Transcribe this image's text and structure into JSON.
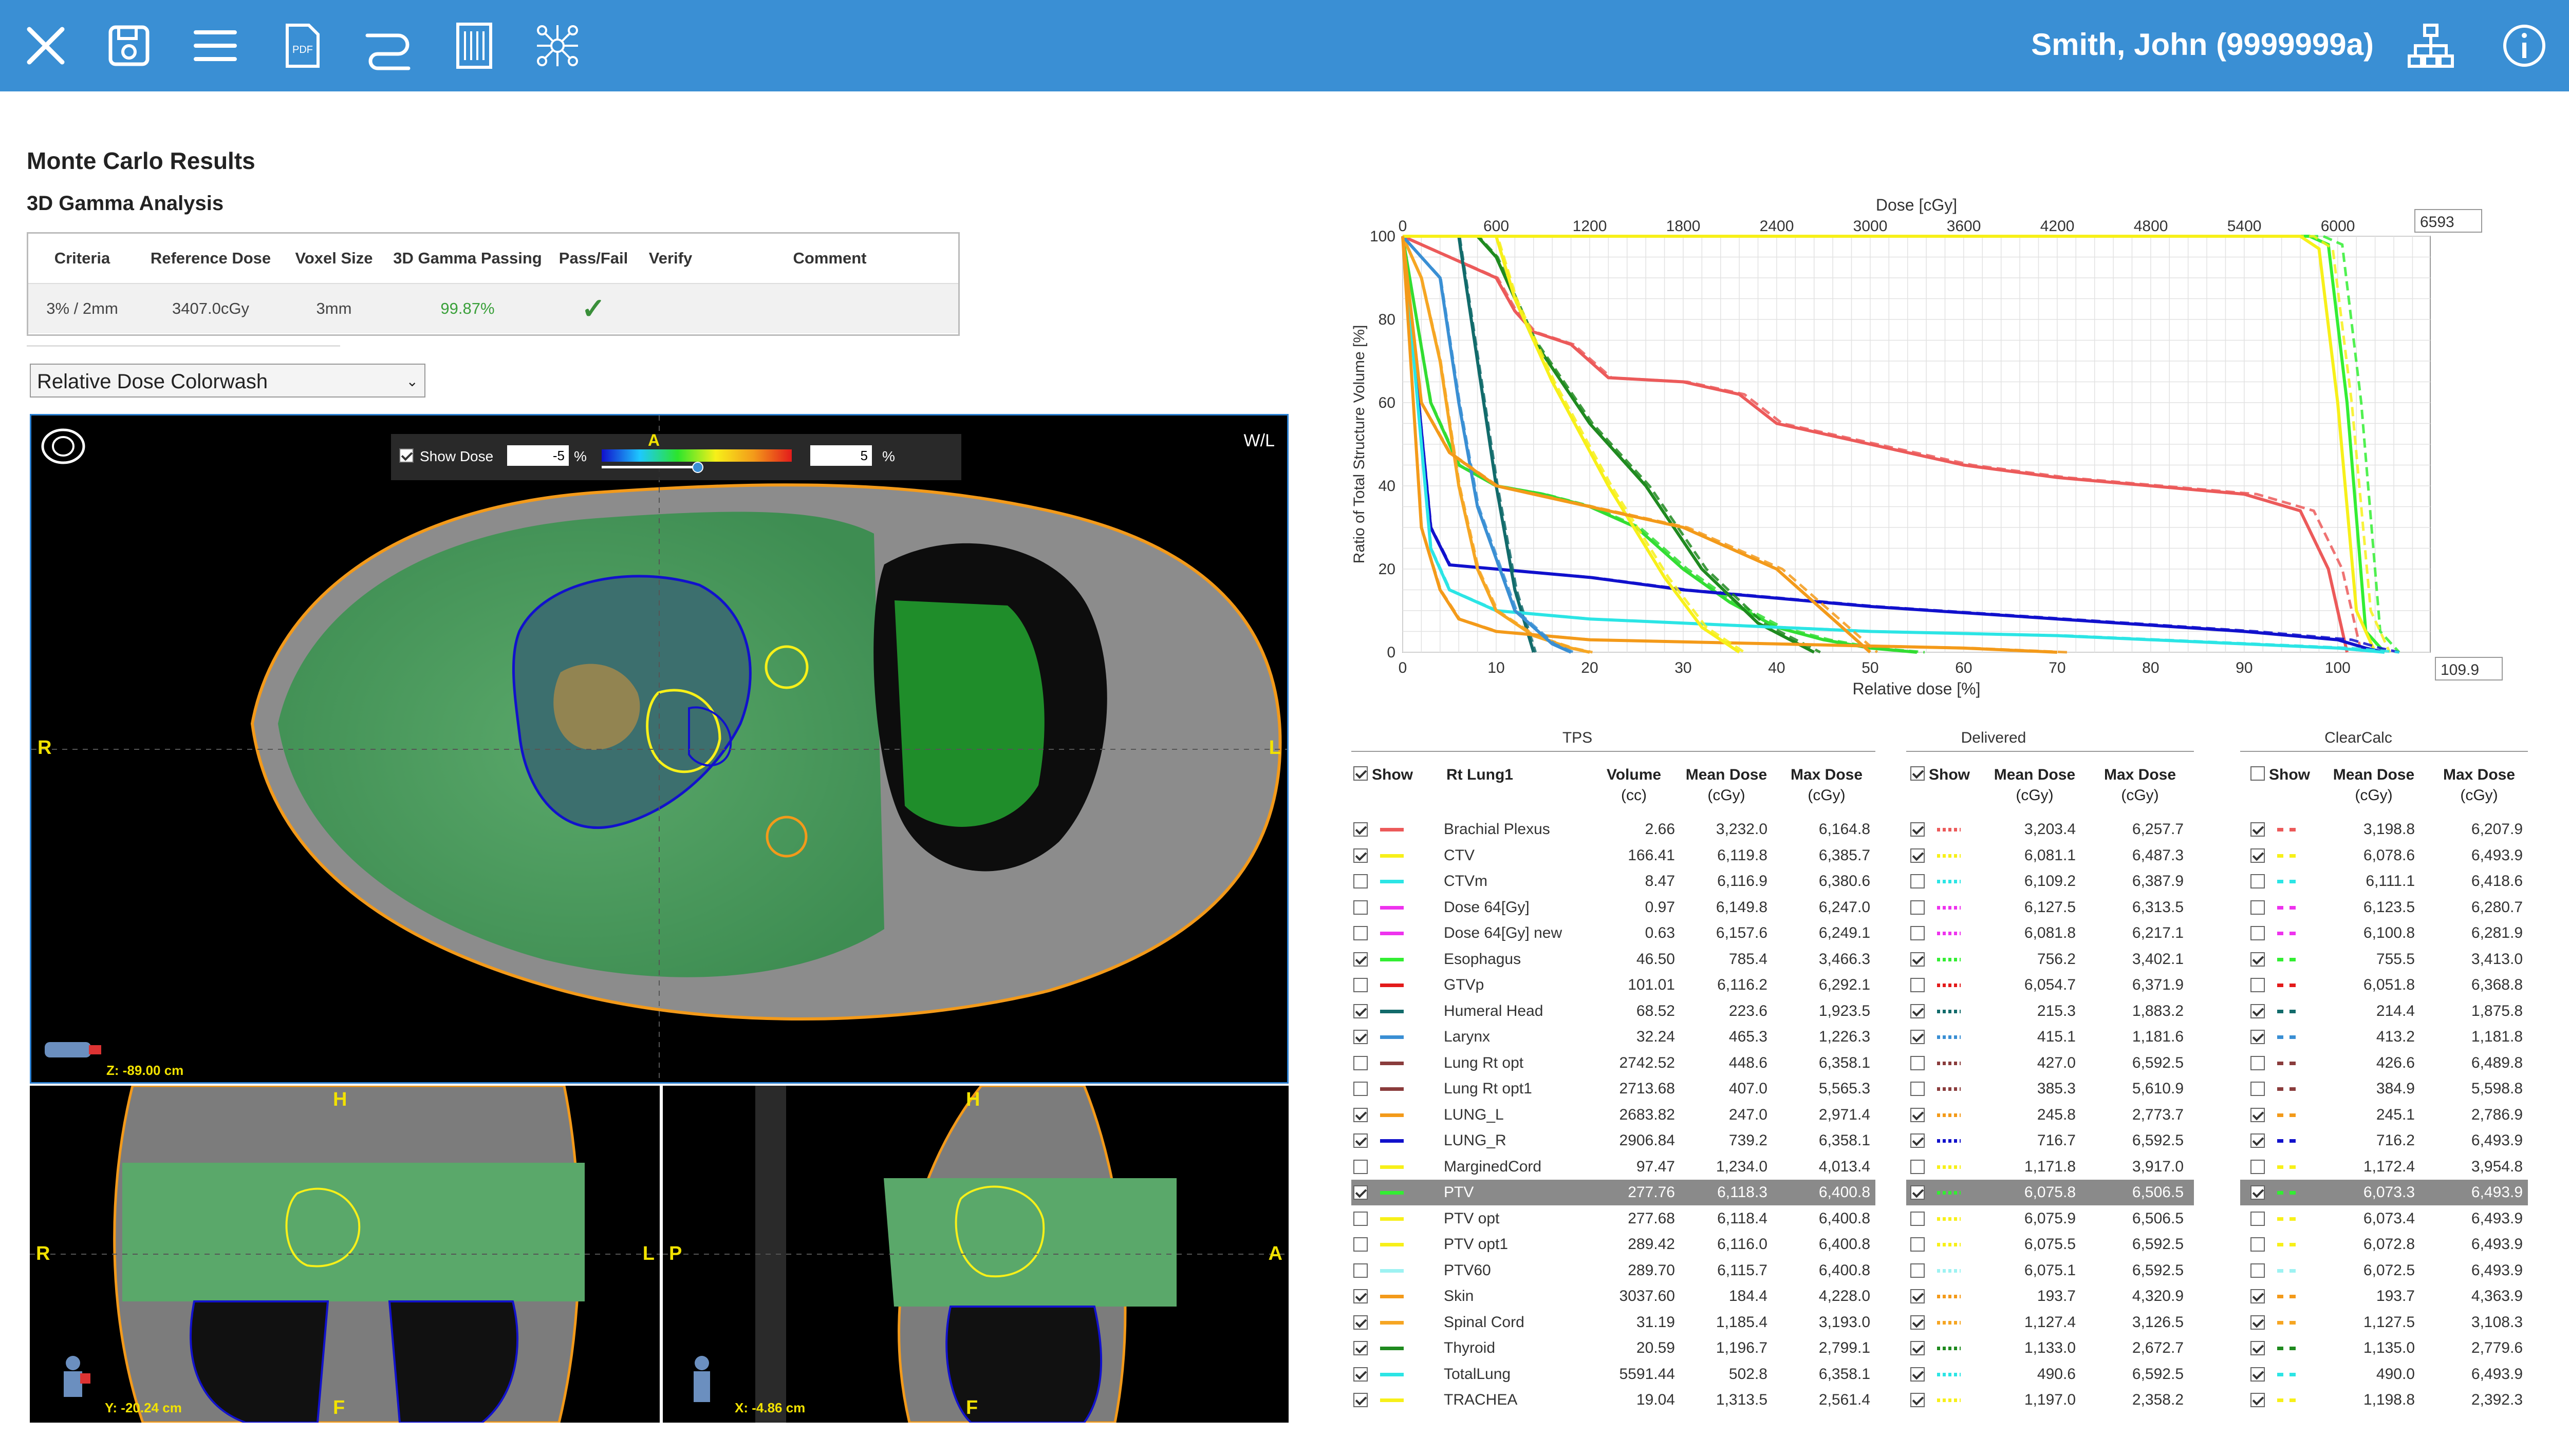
{
  "topbar": {
    "icons": [
      "close-icon",
      "save-icon",
      "menu-icon",
      "pdf-icon",
      "loop-icon",
      "report-icon",
      "network-molecule-icon"
    ],
    "pdf_label": "PDF",
    "user": "Smith, John (9999999a)",
    "right_icons": [
      "hierarchy-icon",
      "info-icon"
    ]
  },
  "page": {
    "title": "Monte Carlo Results",
    "subtitle": "3D Gamma Analysis"
  },
  "gamma": {
    "headers": [
      "Criteria",
      "Reference Dose",
      "Voxel Size",
      "3D Gamma Passing",
      "Pass/Fail",
      "Verify",
      "Comment"
    ],
    "row": {
      "criteria": "3% / 2mm",
      "reference_dose": "3407.0cGy",
      "voxel_size": "3mm",
      "passing": "99.87%",
      "pass": "✓",
      "verify": "",
      "comment": ""
    }
  },
  "view_select": {
    "value": "Relative Dose Colorwash"
  },
  "axial": {
    "show_dose_label": "Show Dose",
    "min": "-5",
    "max": "5",
    "unit": "%",
    "colorbar_label": "A",
    "wl": "W/L",
    "left": "R",
    "right": "L",
    "coord": "Z: -89.00 cm"
  },
  "coronal": {
    "top": "H",
    "bottom": "F",
    "left": "R",
    "right": "L",
    "coord": "Y: -20.24 cm"
  },
  "sagittal": {
    "top": "H",
    "bottom": "F",
    "left": "P",
    "right": "A",
    "coord": "X: -4.86 cm"
  },
  "chart_data": {
    "type": "line",
    "xlabel": "Relative dose [%]",
    "x2label": "Dose [cGy]",
    "ylabel": "Ratio of Total Structure Volume [%]",
    "xlim": [
      0,
      109.9
    ],
    "ylim": [
      0,
      100
    ],
    "x_ticks": [
      "0",
      "10",
      "20",
      "30",
      "40",
      "50",
      "60",
      "70",
      "80",
      "90",
      "100"
    ],
    "x2_ticks": [
      "0",
      "600",
      "1200",
      "1800",
      "2400",
      "3000",
      "3600",
      "4200",
      "4800",
      "5400",
      "6000"
    ],
    "y_ticks": [
      "0",
      "20",
      "40",
      "60",
      "80",
      "100"
    ],
    "x_max_box": "109.9",
    "x2_max_box": "6593",
    "grid": true,
    "series": [
      {
        "name": "PTV",
        "color": "#33ee33",
        "x": [
          0,
          97,
          99,
          101,
          103,
          105
        ],
        "y": [
          100,
          100,
          98,
          60,
          5,
          0
        ]
      },
      {
        "name": "CTV",
        "color": "#f7f019",
        "x": [
          0,
          96,
          98,
          100,
          102,
          104
        ],
        "y": [
          100,
          100,
          97,
          60,
          10,
          0
        ]
      },
      {
        "name": "Brachial Plexus",
        "color": "#ec5a5a",
        "x": [
          0,
          10,
          12,
          14,
          18,
          22,
          30,
          36,
          40,
          46,
          50,
          60,
          70,
          80,
          90,
          96,
          99,
          101
        ],
        "y": [
          100,
          90,
          82,
          77,
          74,
          66,
          65,
          62,
          55,
          52,
          50,
          45,
          42,
          40,
          38,
          34,
          20,
          0
        ]
      },
      {
        "name": "Esophagus",
        "color": "#33dd33",
        "x": [
          0,
          3,
          6,
          10,
          15,
          20,
          25,
          30,
          35,
          40,
          45,
          50,
          55
        ],
        "y": [
          100,
          60,
          45,
          40,
          38,
          35,
          30,
          20,
          12,
          6,
          3,
          1,
          0
        ]
      },
      {
        "name": "LUNG_R",
        "color": "#1111cc",
        "x": [
          0,
          3,
          5,
          10,
          20,
          30,
          50,
          70,
          90,
          100,
          103,
          105
        ],
        "y": [
          100,
          30,
          21,
          20,
          18,
          15,
          11,
          8,
          5,
          3,
          1,
          0
        ]
      },
      {
        "name": "Thyroid",
        "color": "#1f8a1f",
        "x": [
          0,
          8,
          10,
          14,
          20,
          26,
          32,
          38,
          44
        ],
        "y": [
          100,
          100,
          95,
          75,
          55,
          40,
          20,
          7,
          0
        ]
      },
      {
        "name": "Humeral Head",
        "color": "#126b6b",
        "x": [
          0,
          6,
          8,
          10,
          12,
          14
        ],
        "y": [
          100,
          100,
          70,
          40,
          15,
          0
        ]
      },
      {
        "name": "TotalLung",
        "color": "#2ce5e5",
        "x": [
          0,
          3,
          5,
          10,
          20,
          30,
          50,
          70,
          90,
          100,
          105
        ],
        "y": [
          100,
          25,
          15,
          10,
          8,
          7,
          5,
          4,
          2,
          1,
          0
        ]
      },
      {
        "name": "Spinal Cord",
        "color": "#f6a623",
        "x": [
          0,
          2,
          4,
          6,
          8,
          10,
          14,
          18,
          20
        ],
        "y": [
          100,
          90,
          70,
          40,
          20,
          10,
          4,
          1,
          0
        ]
      },
      {
        "name": "Skin",
        "color": "#f39a1a",
        "x": [
          0,
          2,
          4,
          6,
          10,
          20,
          40,
          60,
          70
        ],
        "y": [
          100,
          30,
          15,
          8,
          5,
          3,
          2,
          1,
          0
        ]
      },
      {
        "name": "Larynx",
        "color": "#3a8fd4",
        "x": [
          0,
          4,
          6,
          8,
          12,
          16,
          18
        ],
        "y": [
          100,
          90,
          60,
          35,
          10,
          2,
          0
        ]
      },
      {
        "name": "TRACHEA",
        "color": "#f7f019",
        "x": [
          0,
          10,
          12,
          16,
          22,
          28,
          32,
          36
        ],
        "y": [
          100,
          100,
          85,
          65,
          40,
          18,
          6,
          0
        ]
      },
      {
        "name": "LUNG_L",
        "color": "#f39a1a",
        "x": [
          0,
          2,
          5,
          10,
          20,
          30,
          40,
          50
        ],
        "y": [
          100,
          60,
          48,
          40,
          35,
          30,
          20,
          0
        ]
      }
    ]
  },
  "table": {
    "tps_title": "TPS",
    "delivered_title": "Delivered",
    "clearcalc_title": "ClearCalc",
    "plan_name": "Rt Lung1",
    "show": "Show",
    "col_volume": "Volume",
    "col_volume_unit": "(cc)",
    "col_mean": "Mean Dose",
    "col_max": "Max Dose",
    "col_unit": "(cGy)",
    "tps_show_all": true,
    "del_show_all": true,
    "cc_show_all": false,
    "rows": [
      {
        "name": "Brachial Plexus",
        "color": "#ec5a5a",
        "vol": "2.66",
        "mean": "3,232.0",
        "max": "6,164.8",
        "dmean": "3,203.4",
        "dmax": "6,257.7",
        "cmean": "3,198.8",
        "cmax": "6,207.9",
        "show": true,
        "dshow": true,
        "cshow": true
      },
      {
        "name": "CTV",
        "color": "#f7f019",
        "vol": "166.41",
        "mean": "6,119.8",
        "max": "6,385.7",
        "dmean": "6,081.1",
        "dmax": "6,487.3",
        "cmean": "6,078.6",
        "cmax": "6,493.9",
        "show": true,
        "dshow": true,
        "cshow": true
      },
      {
        "name": "CTVm",
        "color": "#2ce5e5",
        "vol": "8.47",
        "mean": "6,116.9",
        "max": "6,380.6",
        "dmean": "6,109.2",
        "dmax": "6,387.9",
        "cmean": "6,111.1",
        "cmax": "6,418.6",
        "show": false,
        "dshow": false,
        "cshow": false
      },
      {
        "name": "Dose 64[Gy]",
        "color": "#ee33ee",
        "vol": "0.97",
        "mean": "6,149.8",
        "max": "6,247.0",
        "dmean": "6,127.5",
        "dmax": "6,313.5",
        "cmean": "6,123.5",
        "cmax": "6,280.7",
        "show": false,
        "dshow": false,
        "cshow": false
      },
      {
        "name": "Dose 64[Gy] new",
        "color": "#ee33ee",
        "vol": "0.63",
        "mean": "6,157.6",
        "max": "6,249.1",
        "dmean": "6,081.8",
        "dmax": "6,217.1",
        "cmean": "6,100.8",
        "cmax": "6,281.9",
        "show": false,
        "dshow": false,
        "cshow": false
      },
      {
        "name": "Esophagus",
        "color": "#33ee33",
        "vol": "46.50",
        "mean": "785.4",
        "max": "3,466.3",
        "dmean": "756.2",
        "dmax": "3,402.1",
        "cmean": "755.5",
        "cmax": "3,413.0",
        "show": true,
        "dshow": true,
        "cshow": true
      },
      {
        "name": "GTVp",
        "color": "#e31b1b",
        "vol": "101.01",
        "mean": "6,116.2",
        "max": "6,292.1",
        "dmean": "6,054.7",
        "dmax": "6,371.9",
        "cmean": "6,051.8",
        "cmax": "6,368.8",
        "show": false,
        "dshow": false,
        "cshow": false
      },
      {
        "name": "Humeral Head",
        "color": "#126b6b",
        "vol": "68.52",
        "mean": "223.6",
        "max": "1,923.5",
        "dmean": "215.3",
        "dmax": "1,883.2",
        "cmean": "214.4",
        "cmax": "1,875.8",
        "show": true,
        "dshow": true,
        "cshow": true
      },
      {
        "name": "Larynx",
        "color": "#3a8fd4",
        "vol": "32.24",
        "mean": "465.3",
        "max": "1,226.3",
        "dmean": "415.1",
        "dmax": "1,181.6",
        "cmean": "413.2",
        "cmax": "1,181.8",
        "show": true,
        "dshow": true,
        "cshow": true
      },
      {
        "name": "Lung Rt opt",
        "color": "#8a3c3c",
        "vol": "2742.52",
        "mean": "448.6",
        "max": "6,358.1",
        "dmean": "427.0",
        "dmax": "6,592.5",
        "cmean": "426.6",
        "cmax": "6,489.8",
        "show": false,
        "dshow": false,
        "cshow": false
      },
      {
        "name": "Lung Rt opt1",
        "color": "#8a3c3c",
        "vol": "2713.68",
        "mean": "407.0",
        "max": "5,565.3",
        "dmean": "385.3",
        "dmax": "5,610.9",
        "cmean": "384.9",
        "cmax": "5,598.8",
        "show": false,
        "dshow": false,
        "cshow": false
      },
      {
        "name": "LUNG_L",
        "color": "#f39a1a",
        "vol": "2683.82",
        "mean": "247.0",
        "max": "2,971.4",
        "dmean": "245.8",
        "dmax": "2,773.7",
        "cmean": "245.1",
        "cmax": "2,786.9",
        "show": true,
        "dshow": true,
        "cshow": true
      },
      {
        "name": "LUNG_R",
        "color": "#1111cc",
        "vol": "2906.84",
        "mean": "739.2",
        "max": "6,358.1",
        "dmean": "716.7",
        "dmax": "6,592.5",
        "cmean": "716.2",
        "cmax": "6,493.9",
        "show": true,
        "dshow": true,
        "cshow": true
      },
      {
        "name": "MarginedCord",
        "color": "#f7f019",
        "vol": "97.47",
        "mean": "1,234.0",
        "max": "4,013.4",
        "dmean": "1,171.8",
        "dmax": "3,917.0",
        "cmean": "1,172.4",
        "cmax": "3,954.8",
        "show": false,
        "dshow": false,
        "cshow": false
      },
      {
        "name": "PTV",
        "color": "#33ee33",
        "vol": "277.76",
        "mean": "6,118.3",
        "max": "6,400.8",
        "dmean": "6,075.8",
        "dmax": "6,506.5",
        "cmean": "6,073.3",
        "cmax": "6,493.9",
        "show": true,
        "dshow": true,
        "cshow": true,
        "highlight": true
      },
      {
        "name": "PTV opt",
        "color": "#f7f019",
        "vol": "277.68",
        "mean": "6,118.4",
        "max": "6,400.8",
        "dmean": "6,075.9",
        "dmax": "6,506.5",
        "cmean": "6,073.4",
        "cmax": "6,493.9",
        "show": false,
        "dshow": false,
        "cshow": false
      },
      {
        "name": "PTV opt1",
        "color": "#f7f019",
        "vol": "289.42",
        "mean": "6,116.0",
        "max": "6,400.8",
        "dmean": "6,075.5",
        "dmax": "6,592.5",
        "cmean": "6,072.8",
        "cmax": "6,493.9",
        "show": false,
        "dshow": false,
        "cshow": false
      },
      {
        "name": "PTV60",
        "color": "#9ef2f2",
        "vol": "289.70",
        "mean": "6,115.7",
        "max": "6,400.8",
        "dmean": "6,075.1",
        "dmax": "6,592.5",
        "cmean": "6,072.5",
        "cmax": "6,493.9",
        "show": false,
        "dshow": false,
        "cshow": false
      },
      {
        "name": "Skin",
        "color": "#f39a1a",
        "vol": "3037.60",
        "mean": "184.4",
        "max": "4,228.0",
        "dmean": "193.7",
        "dmax": "4,320.9",
        "cmean": "193.7",
        "cmax": "4,363.9",
        "show": true,
        "dshow": true,
        "cshow": true
      },
      {
        "name": "Spinal Cord",
        "color": "#f6a623",
        "vol": "31.19",
        "mean": "1,185.4",
        "max": "3,193.0",
        "dmean": "1,127.4",
        "dmax": "3,126.5",
        "cmean": "1,127.5",
        "cmax": "3,108.3",
        "show": true,
        "dshow": true,
        "cshow": true
      },
      {
        "name": "Thyroid",
        "color": "#1f8a1f",
        "vol": "20.59",
        "mean": "1,196.7",
        "max": "2,799.1",
        "dmean": "1,133.0",
        "dmax": "2,672.7",
        "cmean": "1,135.0",
        "cmax": "2,779.6",
        "show": true,
        "dshow": true,
        "cshow": true
      },
      {
        "name": "TotalLung",
        "color": "#2ce5e5",
        "vol": "5591.44",
        "mean": "502.8",
        "max": "6,358.1",
        "dmean": "490.6",
        "dmax": "6,592.5",
        "cmean": "490.0",
        "cmax": "6,493.9",
        "show": true,
        "dshow": true,
        "cshow": true
      },
      {
        "name": "TRACHEA",
        "color": "#f7f019",
        "vol": "19.04",
        "mean": "1,313.5",
        "max": "2,561.4",
        "dmean": "1,197.0",
        "dmax": "2,358.2",
        "cmean": "1,198.8",
        "cmax": "2,392.3",
        "show": true,
        "dshow": true,
        "cshow": true
      }
    ]
  }
}
